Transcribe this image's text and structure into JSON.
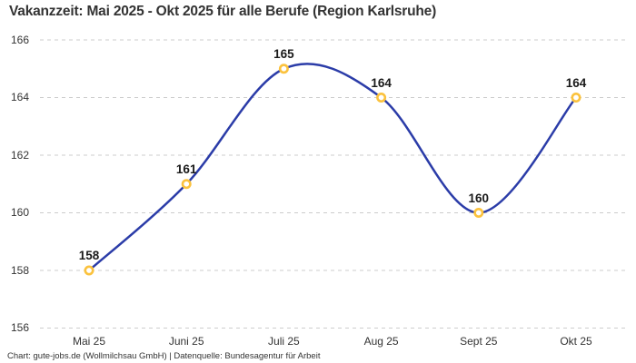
{
  "title": "Vakanzzeit: Mai 2025 - Okt 2025 für alle Berufe (Region Karlsruhe)",
  "footer": "Chart: gute-jobs.de (Wollmilchsau GmbH) | Datenquelle: Bundesagentur für Arbeit",
  "chart_data": {
    "type": "line",
    "title": "Vakanzzeit: Mai 2025 - Okt 2025 für alle Berufe (Region Karlsruhe)",
    "categories": [
      "Mai 25",
      "Juni 25",
      "Juli 25",
      "Aug 25",
      "Sept 25",
      "Okt 25"
    ],
    "values": [
      158,
      161,
      165,
      164,
      160,
      164
    ],
    "data_labels": [
      "158",
      "161",
      "165",
      "164",
      "160",
      "164"
    ],
    "yticks": [
      166,
      164,
      162,
      160,
      158,
      156
    ],
    "ylim": [
      156,
      166
    ],
    "xlabel": "",
    "ylabel": "",
    "legend": "none",
    "grid": "horizontal-dashed",
    "smooth": true,
    "colors": {
      "line": "#2b3ca8",
      "marker_stroke": "#fbc23d",
      "marker_fill": "#ffffff",
      "grid": "#cccccc",
      "axis_text": "#333333",
      "label_text": "#1a1a1a",
      "title_text": "#333333",
      "background": "#ffffff"
    }
  }
}
